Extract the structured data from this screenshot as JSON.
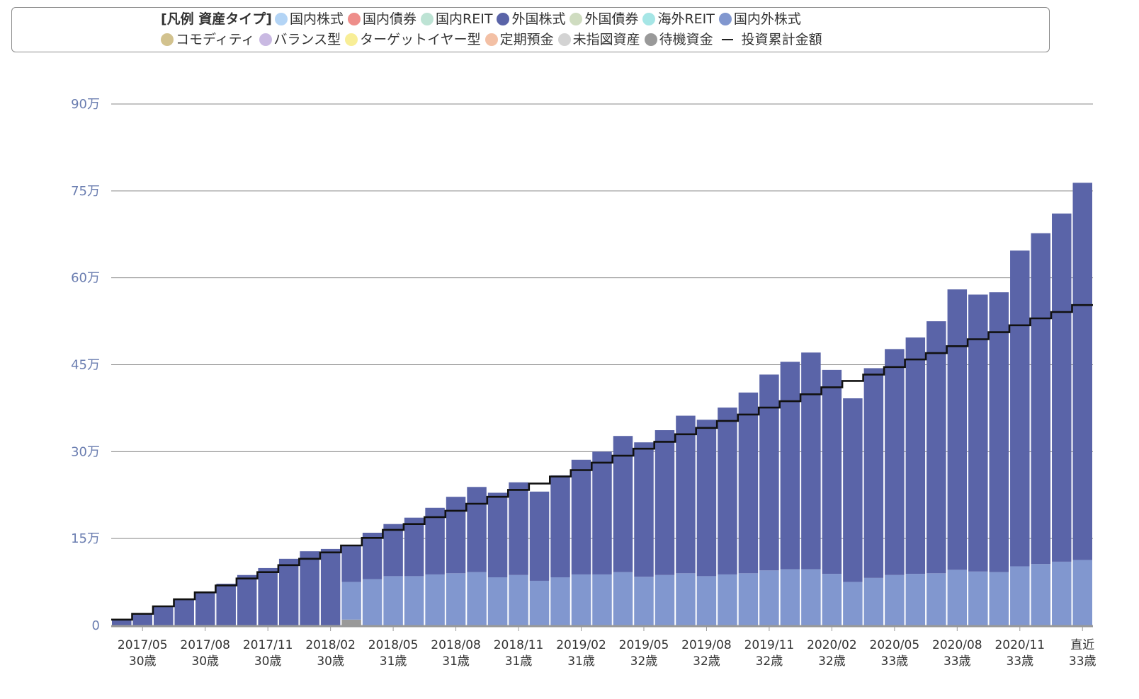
{
  "legend": {
    "title": "[凡例 資産タイプ]",
    "items": [
      {
        "label": "国内株式",
        "color": "#b3d4f5"
      },
      {
        "label": "国内債券",
        "color": "#ee8e8a"
      },
      {
        "label": "国内REIT",
        "color": "#bde3d4"
      },
      {
        "label": "外国株式",
        "color": "#5a64a8"
      },
      {
        "label": "外国債券",
        "color": "#cfdcc0"
      },
      {
        "label": "海外REIT",
        "color": "#a6e6e6"
      },
      {
        "label": "国内外株式",
        "color": "#8197cf"
      },
      {
        "label": "コモディティ",
        "color": "#d2c28e"
      },
      {
        "label": "バランス型",
        "color": "#c9b9e2"
      },
      {
        "label": "ターゲットイヤー型",
        "color": "#f8ee97"
      },
      {
        "label": "定期預金",
        "color": "#f3c0a5"
      },
      {
        "label": "未指図資産",
        "color": "#d3d3d3"
      },
      {
        "label": "待機資金",
        "color": "#999999"
      }
    ],
    "line_label": "投資累計金額"
  },
  "chart_data": {
    "type": "bar",
    "stacked": true,
    "ylim": [
      0,
      900000
    ],
    "yticks": [
      0,
      150000,
      300000,
      450000,
      600000,
      750000,
      900000
    ],
    "ytick_labels": [
      "0",
      "15万",
      "30万",
      "45万",
      "60万",
      "75万",
      "90万"
    ],
    "grid": true,
    "legend_position": "top",
    "xtick_labels": [
      {
        "date": "2017/05",
        "age": "30歳",
        "index": 1
      },
      {
        "date": "2017/08",
        "age": "30歳",
        "index": 4
      },
      {
        "date": "2017/11",
        "age": "30歳",
        "index": 7
      },
      {
        "date": "2018/02",
        "age": "30歳",
        "index": 10
      },
      {
        "date": "2018/05",
        "age": "31歳",
        "index": 13
      },
      {
        "date": "2018/08",
        "age": "31歳",
        "index": 16
      },
      {
        "date": "2018/11",
        "age": "31歳",
        "index": 19
      },
      {
        "date": "2019/02",
        "age": "31歳",
        "index": 22
      },
      {
        "date": "2019/05",
        "age": "32歳",
        "index": 25
      },
      {
        "date": "2019/08",
        "age": "32歳",
        "index": 28
      },
      {
        "date": "2019/11",
        "age": "32歳",
        "index": 31
      },
      {
        "date": "2020/02",
        "age": "32歳",
        "index": 34
      },
      {
        "date": "2020/05",
        "age": "33歳",
        "index": 37
      },
      {
        "date": "2020/08",
        "age": "33歳",
        "index": 40
      },
      {
        "date": "2020/11",
        "age": "33歳",
        "index": 43
      },
      {
        "date": "直近",
        "age": "33歳",
        "index": 46
      }
    ],
    "series": [
      {
        "name": "待機資金",
        "color": "#999999",
        "values": [
          0,
          0,
          0,
          0,
          0,
          0,
          0,
          0,
          0,
          0,
          0,
          10000,
          0,
          0,
          0,
          0,
          0,
          0,
          0,
          0,
          0,
          0,
          0,
          0,
          0,
          0,
          0,
          0,
          0,
          0,
          0,
          0,
          0,
          0,
          0,
          0,
          0,
          0,
          0,
          0,
          0,
          0,
          0,
          0,
          0,
          0,
          0
        ]
      },
      {
        "name": "国内外株式",
        "color": "#8197cf",
        "values": [
          0,
          0,
          0,
          0,
          0,
          0,
          0,
          0,
          0,
          0,
          0,
          65000,
          80000,
          85000,
          85000,
          88000,
          90000,
          92000,
          83000,
          87000,
          77000,
          83000,
          88000,
          88000,
          92000,
          84000,
          87000,
          90000,
          85000,
          88000,
          90000,
          95000,
          97000,
          97000,
          89000,
          75000,
          82000,
          87000,
          89000,
          90000,
          96000,
          93000,
          92000,
          102000,
          106000,
          110000,
          113000
        ]
      },
      {
        "name": "外国株式",
        "color": "#5a64a8",
        "values": [
          10000,
          20000,
          33000,
          45000,
          57000,
          72000,
          87000,
          99000,
          115000,
          128000,
          132000,
          62000,
          80000,
          90000,
          101000,
          115000,
          132000,
          147000,
          146000,
          160000,
          154000,
          176000,
          198000,
          212000,
          235000,
          232000,
          250000,
          272000,
          270000,
          288000,
          312000,
          338000,
          358000,
          374000,
          352000,
          317000,
          362000,
          390000,
          408000,
          435000,
          484000,
          478000,
          483000,
          545000,
          571000,
          601000,
          651000
        ]
      }
    ],
    "cumulative_investment": {
      "name": "投資累計金額",
      "values": [
        10000,
        20000,
        33000,
        45000,
        57000,
        69000,
        81000,
        92000,
        104000,
        115000,
        126000,
        138000,
        151000,
        165000,
        175000,
        187000,
        198000,
        210000,
        222000,
        234000,
        245000,
        257000,
        268000,
        281000,
        293000,
        305000,
        317000,
        330000,
        341000,
        353000,
        364000,
        376000,
        387000,
        399000,
        411000,
        422000,
        433000,
        446000,
        459000,
        470000,
        482000,
        494000,
        506000,
        518000,
        530000,
        541000,
        553000
      ]
    }
  }
}
